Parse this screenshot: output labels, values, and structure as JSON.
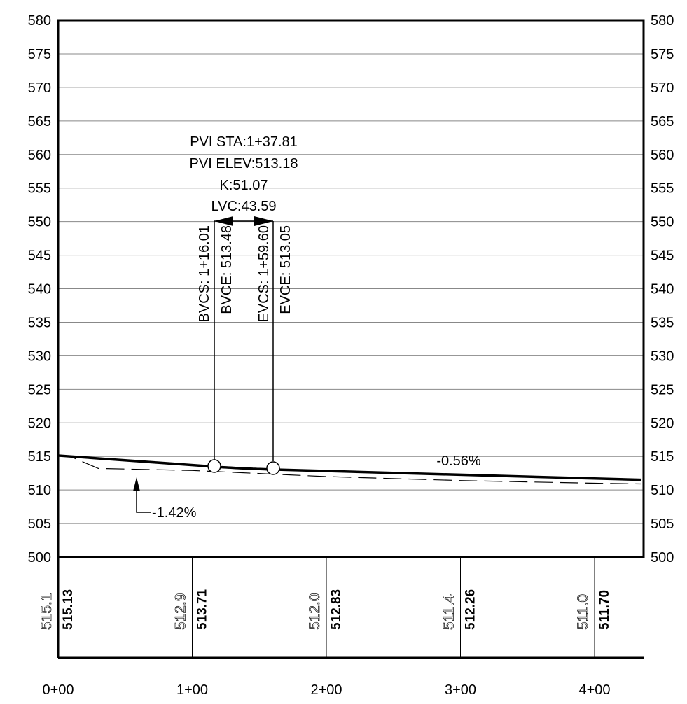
{
  "elevation_ticks": [
    "500",
    "505",
    "510",
    "515",
    "520",
    "525",
    "530",
    "535",
    "540",
    "545",
    "550",
    "555",
    "560",
    "565",
    "570",
    "575",
    "580"
  ],
  "station_ticks": [
    "0+00",
    "1+00",
    "2+00",
    "3+00",
    "4+00"
  ],
  "vertical_curve": {
    "pvi_sta": "PVI STA:1+37.81",
    "pvi_elev": "PVI ELEV:513.18",
    "k": "K:51.07",
    "lvc": "LVC:43.59",
    "bvcs": "BVCS: 1+16.01",
    "bvce": "BVCE: 513.48",
    "evcs": "EVCS: 1+59.60",
    "evce": "EVCE: 513.05"
  },
  "grades": {
    "in_grade": "-1.42%",
    "out_grade": "-0.56%"
  },
  "elevation_columns": [
    {
      "existing": "515.1",
      "proposed": "515.13"
    },
    {
      "existing": "512.9",
      "proposed": "513.71"
    },
    {
      "existing": "512.0",
      "proposed": "512.83"
    },
    {
      "existing": "511.4",
      "proposed": "512.26"
    },
    {
      "existing": "511.0",
      "proposed": "511.70"
    }
  ],
  "chart_data": {
    "type": "line",
    "xlabel": "",
    "ylabel": "",
    "xlim": [
      0,
      435
    ],
    "ylim": [
      500,
      580
    ],
    "series": [
      {
        "x": [
          0,
          116.01,
          137.81,
          159.6,
          435
        ],
        "y": [
          515.13,
          513.48,
          513.18,
          513.05,
          511.51
        ]
      },
      {
        "x": [
          0,
          10,
          30,
          100,
          200,
          300,
          400,
          435
        ],
        "y": [
          515.1,
          514.9,
          513.2,
          512.9,
          512.0,
          511.4,
          511.0,
          510.9
        ]
      }
    ]
  }
}
